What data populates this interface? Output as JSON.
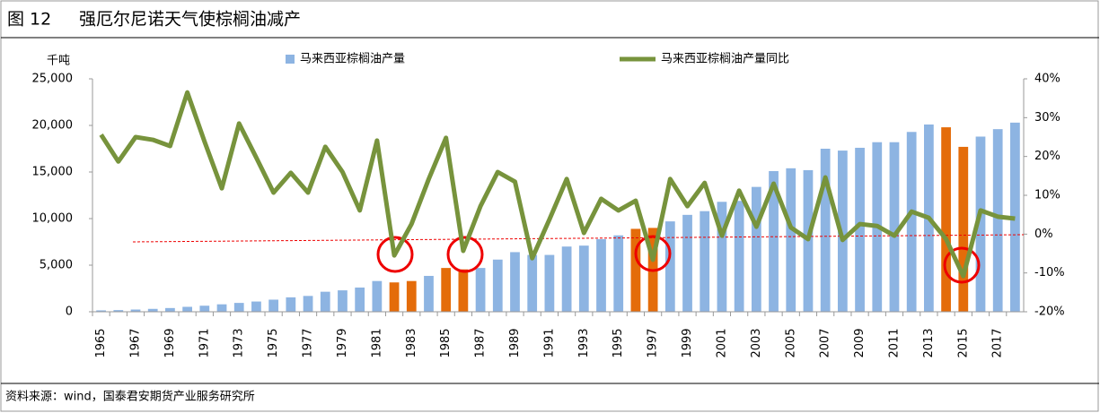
{
  "figure_label": "图 12",
  "title": "强厄尔尼诺天气使棕榈油减产",
  "source": "资料来源：wind，国泰君安期货产业服务研究所",
  "chart_data": {
    "type": "bar_line",
    "y_unit": "千吨",
    "categories": [
      "1965",
      null,
      "1967",
      null,
      "1969",
      null,
      "1971",
      null,
      "1973",
      null,
      "1975",
      null,
      "1977",
      null,
      "1979",
      null,
      "1981",
      null,
      "1983",
      null,
      "1985",
      null,
      "1987",
      null,
      "1989",
      null,
      "1991",
      null,
      "1993",
      null,
      "1995",
      null,
      "1997",
      null,
      "1999",
      null,
      "2001",
      null,
      "2003",
      null,
      "2005",
      null,
      "2007",
      null,
      "2009",
      null,
      "2011",
      null,
      "2013",
      null,
      "2015",
      null,
      "2017",
      null
    ],
    "series": [
      {
        "name": "马来西亚棕榈油产量",
        "type": "bar",
        "axis": "y",
        "color": "#8db4e2",
        "colors": [
          "#8db4e2",
          "#8db4e2",
          "#8db4e2",
          "#8db4e2",
          "#8db4e2",
          "#8db4e2",
          "#8db4e2",
          "#8db4e2",
          "#8db4e2",
          "#8db4e2",
          "#8db4e2",
          "#8db4e2",
          "#8db4e2",
          "#8db4e2",
          "#8db4e2",
          "#8db4e2",
          "#8db4e2",
          "#e46c0a",
          "#e46c0a",
          "#8db4e2",
          "#e46c0a",
          "#e46c0a",
          "#8db4e2",
          "#8db4e2",
          "#8db4e2",
          "#8db4e2",
          "#8db4e2",
          "#8db4e2",
          "#8db4e2",
          "#8db4e2",
          "#8db4e2",
          "#e46c0a",
          "#e46c0a",
          "#8db4e2",
          "#8db4e2",
          "#8db4e2",
          "#8db4e2",
          "#8db4e2",
          "#8db4e2",
          "#8db4e2",
          "#8db4e2",
          "#8db4e2",
          "#8db4e2",
          "#8db4e2",
          "#8db4e2",
          "#8db4e2",
          "#8db4e2",
          "#8db4e2",
          "#8db4e2",
          "#e46c0a",
          "#e46c0a",
          "#8db4e2",
          "#8db4e2",
          "#8db4e2"
        ],
        "values": [
          150,
          180,
          240,
          310,
          400,
          530,
          650,
          800,
          950,
          1100,
          1300,
          1550,
          1700,
          2150,
          2300,
          2600,
          3300,
          3150,
          3300,
          3850,
          4700,
          4550,
          4700,
          5600,
          6400,
          6100,
          6100,
          7000,
          7100,
          7800,
          8200,
          8900,
          9000,
          9700,
          10400,
          10800,
          11800,
          11900,
          13400,
          15100,
          15400,
          15200,
          17500,
          17300,
          17600,
          18200,
          18200,
          19300,
          20100,
          19800,
          17700,
          18800,
          19600,
          20300
        ]
      },
      {
        "name": "马来西亚棕榈油产量同比",
        "type": "line",
        "axis": "y2",
        "color": "#77933c",
        "values": [
          25.6,
          18.7,
          25,
          24.3,
          22.7,
          36.5,
          23.8,
          11.8,
          28.5,
          19.7,
          10.7,
          15.8,
          10.7,
          22.5,
          16,
          6.1,
          24.1,
          -5.5,
          2.6,
          14.2,
          24.8,
          -4.3,
          7.2,
          16,
          13.5,
          -6.2,
          3.8,
          14.2,
          0.3,
          9.1,
          6.1,
          8.6,
          -6.6,
          14.2,
          7.2,
          13.2,
          -0.4,
          11.2,
          1.9,
          13,
          1.7,
          -1.3,
          14.6,
          -1.5,
          2.6,
          2.1,
          -0.4,
          5.8,
          4.2,
          -1.3,
          -10.8,
          6.1,
          4.5,
          4
        ]
      }
    ],
    "ylim": [
      0,
      25000
    ],
    "yticks": [
      0,
      {
        "value": 5000,
        "label": "5,000"
      },
      {
        "value": 10000,
        "label": "10,000"
      },
      {
        "value": 15000,
        "label": "15,000"
      },
      {
        "value": 20000,
        "label": "20,000"
      },
      {
        "value": 25000,
        "label": "25,000"
      }
    ],
    "y2lim": [
      -20,
      40
    ],
    "y2ticks": [
      {
        "value": -20,
        "label": "-20%"
      },
      {
        "value": -10,
        "label": "-10%"
      },
      {
        "value": 0,
        "label": "0%"
      },
      {
        "value": 10,
        "label": "10%"
      },
      {
        "value": 20,
        "label": "20%"
      },
      {
        "value": 30,
        "label": "30%"
      },
      {
        "value": 40,
        "label": "40%"
      }
    ],
    "legend": "top",
    "grid": false
  }
}
